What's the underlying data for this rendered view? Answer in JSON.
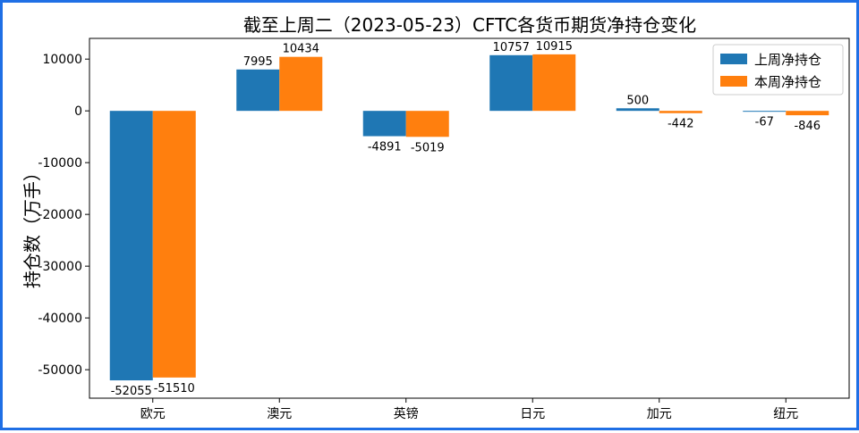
{
  "chart_data": {
    "type": "bar",
    "title": "截至上周二（2023-05-23）CFTC各货币期货净持仓变化",
    "xlabel": "",
    "ylabel": "持仓数（万手）",
    "categories": [
      "欧元",
      "澳元",
      "英镑",
      "日元",
      "加元",
      "纽元"
    ],
    "series": [
      {
        "name": "上周净持仓",
        "color": "#1f77b4",
        "values": [
          -52055,
          7995,
          -4891,
          10757,
          500,
          -67
        ]
      },
      {
        "name": "本周净持仓",
        "color": "#ff7f0e",
        "values": [
          -51510,
          10434,
          -5019,
          10915,
          -442,
          -846
        ]
      }
    ],
    "ylim": [
      -55500,
      14000
    ],
    "yticks": [
      10000,
      0,
      -10000,
      -20000,
      -30000,
      -40000,
      -50000
    ],
    "grid": false,
    "legend_position": "top-right"
  }
}
